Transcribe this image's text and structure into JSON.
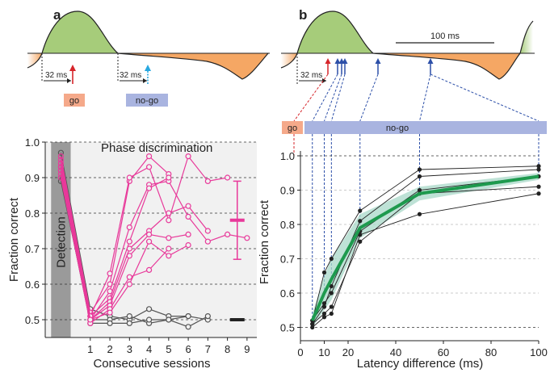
{
  "panels": {
    "a": "a",
    "b": "b"
  },
  "top": {
    "a_latency_left": "32 ms",
    "a_latency_right": "32 ms",
    "go_label": "go",
    "nogo_label": "no-go",
    "b_latency": "32 ms",
    "scale_bar": "100 ms",
    "bar_go": "go",
    "bar_nogo": "no-go"
  },
  "colors": {
    "green": "#a6cc7a",
    "orange": "#f5a764",
    "go_box": "#f5a98a",
    "nogo_box": "#a9b4e0",
    "go_arrow": "#d6252a",
    "nogo_arrow": "#29a8e0",
    "magenta": "#e8399a",
    "dark_green": "#1e9a4e",
    "band": "#a8d8c8",
    "dashed_blue": "#2c4fa8",
    "detect_gray": "#9a9a9a",
    "panel_bg": "#f1f1f1"
  },
  "chart_data": [
    {
      "type": "line",
      "title": "Phase discrimination",
      "xlabel": "Consecutive sessions",
      "ylabel": "Fraction correct",
      "detection_label": "Detection",
      "xlim": [
        -1.3,
        9.5
      ],
      "ylim": [
        0.45,
        1.0
      ],
      "xticks": [
        1,
        2,
        3,
        4,
        5,
        6,
        7,
        8,
        9
      ],
      "yticks": [
        0.5,
        0.6,
        0.7,
        0.8,
        0.9,
        1.0
      ],
      "tick_labels_y": [
        "0.5",
        "0.6",
        "0.7",
        "0.8",
        "0.9",
        "1.0"
      ],
      "tick_labels_x": [
        "1",
        "2",
        "3",
        "4",
        "5",
        "6",
        "7",
        "8",
        "9"
      ],
      "detection_x": -0.5,
      "magenta_series": [
        {
          "detect": 0.96,
          "values": [
            [
              1,
              0.52
            ],
            [
              2,
              0.6
            ],
            [
              3,
              0.89
            ],
            [
              4,
              0.96
            ],
            [
              5,
              0.91
            ]
          ]
        },
        {
          "detect": 0.95,
          "values": [
            [
              1,
              0.51
            ],
            [
              2,
              0.63
            ],
            [
              3,
              0.9
            ],
            [
              4,
              0.93
            ],
            [
              5,
              0.78
            ],
            [
              6,
              0.96
            ],
            [
              7,
              0.89
            ],
            [
              8,
              0.9
            ]
          ]
        },
        {
          "detect": 0.94,
          "values": [
            [
              1,
              0.5
            ],
            [
              2,
              0.58
            ],
            [
              3,
              0.76
            ],
            [
              4,
              0.88
            ],
            [
              5,
              0.89
            ],
            [
              6,
              0.79
            ],
            [
              7,
              0.72
            ],
            [
              8,
              0.74
            ],
            [
              9,
              0.73
            ]
          ]
        },
        {
          "detect": 0.93,
          "values": [
            [
              1,
              0.51
            ],
            [
              2,
              0.56
            ],
            [
              3,
              0.72
            ],
            [
              4,
              0.87
            ],
            [
              5,
              0.9
            ]
          ]
        },
        {
          "detect": 0.92,
          "values": [
            [
              1,
              0.5
            ],
            [
              2,
              0.55
            ],
            [
              3,
              0.7
            ],
            [
              4,
              0.75
            ],
            [
              5,
              0.8
            ],
            [
              6,
              0.82
            ],
            [
              7,
              0.75
            ]
          ]
        },
        {
          "detect": 0.91,
          "values": [
            [
              1,
              0.5
            ],
            [
              2,
              0.54
            ],
            [
              3,
              0.68
            ],
            [
              4,
              0.74
            ],
            [
              5,
              0.73
            ],
            [
              6,
              0.74
            ]
          ]
        },
        {
          "detect": 0.9,
          "values": [
            [
              1,
              0.49
            ],
            [
              2,
              0.53
            ],
            [
              3,
              0.62
            ],
            [
              4,
              0.64
            ],
            [
              5,
              0.7
            ]
          ]
        },
        {
          "detect": 0.93,
          "values": [
            [
              1,
              0.5
            ],
            [
              2,
              0.52
            ],
            [
              3,
              0.6
            ],
            [
              4,
              0.72
            ],
            [
              5,
              0.68
            ],
            [
              6,
              0.71
            ]
          ]
        }
      ],
      "gray_series": [
        {
          "detect": 0.97,
          "values": [
            [
              1,
              0.53
            ],
            [
              2,
              0.51
            ],
            [
              3,
              0.5
            ],
            [
              4,
              0.53
            ],
            [
              5,
              0.51
            ],
            [
              6,
              0.51
            ],
            [
              7,
              0.5
            ]
          ]
        },
        {
          "detect": 0.89,
          "values": [
            [
              1,
              0.5
            ],
            [
              2,
              0.5
            ],
            [
              3,
              0.51
            ],
            [
              4,
              0.49
            ],
            [
              5,
              0.5
            ],
            [
              6,
              0.48
            ],
            [
              7,
              0.51
            ]
          ]
        },
        {
          "detect": 0.9,
          "values": [
            [
              1,
              0.49
            ],
            [
              2,
              0.49
            ],
            [
              3,
              0.49
            ],
            [
              4,
              0.5
            ],
            [
              5,
              0.5
            ],
            [
              6,
              0.51
            ]
          ]
        }
      ],
      "magenta_summary": {
        "x": 8.5,
        "mean": 0.78,
        "low": 0.67,
        "high": 0.89
      },
      "gray_summary": {
        "x": 8.5,
        "mean": 0.5
      }
    },
    {
      "type": "line",
      "xlabel": "Latency difference (ms)",
      "ylabel": "Fraction correct",
      "xlim": [
        0,
        100
      ],
      "ylim": [
        0.48,
        1.0
      ],
      "xticks": [
        0,
        10,
        20,
        40,
        60,
        80,
        100
      ],
      "tick_labels_x": [
        "0",
        "10",
        "20",
        "40",
        "60",
        "80",
        "100"
      ],
      "yticks": [
        0.5,
        0.6,
        0.7,
        0.8,
        0.9,
        1.0
      ],
      "tick_labels_y": [
        "0.5",
        "0.6",
        "0.7",
        "0.8",
        "0.9",
        "1.0"
      ],
      "x": [
        5,
        10,
        13,
        25,
        50,
        100
      ],
      "mean": [
        0.52,
        0.6,
        0.64,
        0.79,
        0.89,
        0.94
      ],
      "band_low": [
        0.5,
        0.55,
        0.58,
        0.76,
        0.87,
        0.93
      ],
      "band_high": [
        0.54,
        0.65,
        0.7,
        0.83,
        0.91,
        0.95
      ],
      "series": [
        {
          "values": [
            0.52,
            0.66,
            0.7,
            0.84,
            0.96,
            0.97
          ]
        },
        {
          "values": [
            0.51,
            0.56,
            0.62,
            0.81,
            0.94,
            0.96
          ]
        },
        {
          "values": [
            0.52,
            0.57,
            0.6,
            0.78,
            0.9,
            0.94
          ]
        },
        {
          "values": [
            0.51,
            0.54,
            0.56,
            0.75,
            0.89,
            0.91
          ]
        },
        {
          "values": [
            0.5,
            0.53,
            0.54,
            0.77,
            0.83,
            0.89
          ]
        }
      ]
    }
  ]
}
